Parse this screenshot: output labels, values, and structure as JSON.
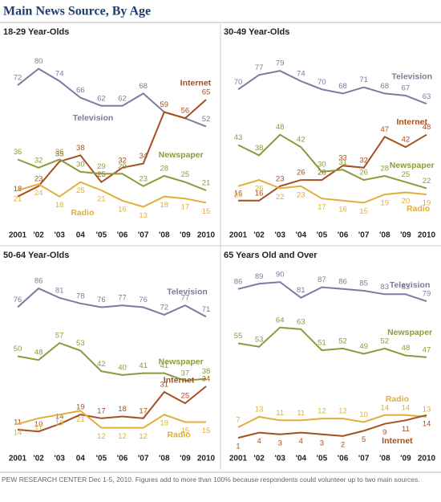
{
  "title": "Main News Source, By Age",
  "note": "PEW RESEARCH CENTER Dec 1-5, 2010. Figures add to more than 100% because respondents could volunteer up to two main sources.",
  "chart_data": [
    {
      "type": "line",
      "title": "18-29 Year-Olds",
      "categories": [
        "2001",
        "'02",
        "'03",
        "04",
        "'05",
        "'06",
        "'07",
        "'08",
        "'09",
        "2010"
      ],
      "ylim": [
        5,
        90
      ],
      "series": [
        {
          "name": "Television",
          "color": "#7c7b9e",
          "values": [
            72,
            80,
            74,
            66,
            62,
            62,
            68,
            59,
            56,
            52
          ],
          "value_labels": [
            "72",
            "80",
            "74",
            "66",
            "62",
            "62",
            "68",
            null,
            null,
            "52"
          ]
        },
        {
          "name": "Internet",
          "color": "#a5501f",
          "values": [
            18,
            23,
            35,
            38,
            25,
            32,
            34,
            59,
            56,
            65
          ]
        },
        {
          "name": "Newspaper",
          "color": "#8c9a3c",
          "values": [
            36,
            32,
            36,
            30,
            29,
            29,
            23,
            28,
            25,
            21
          ]
        },
        {
          "name": "Radio",
          "color": "#e0ae3a",
          "values": [
            21,
            24,
            18,
            25,
            21,
            16,
            13,
            18,
            17,
            15
          ]
        }
      ]
    },
    {
      "type": "line",
      "title": "30-49 Year-Olds",
      "categories": [
        "2001",
        "'02",
        "'03",
        "'04",
        "'05",
        "'06",
        "'07",
        "'08",
        "'09",
        "2010"
      ],
      "ylim": [
        5,
        90
      ],
      "series": [
        {
          "name": "Television",
          "color": "#7c7b9e",
          "values": [
            70,
            77,
            79,
            74,
            70,
            68,
            71,
            68,
            67,
            63
          ]
        },
        {
          "name": "Internet",
          "color": "#a5501f",
          "values": [
            16,
            16,
            23,
            26,
            26,
            33,
            32,
            47,
            42,
            48
          ]
        },
        {
          "name": "Newspaper",
          "color": "#8c9a3c",
          "values": [
            43,
            38,
            48,
            42,
            30,
            31,
            26,
            28,
            25,
            22
          ]
        },
        {
          "name": "Radio",
          "color": "#e0ae3a",
          "values": [
            23,
            26,
            22,
            23,
            17,
            16,
            15,
            19,
            20,
            19
          ]
        }
      ]
    },
    {
      "type": "line",
      "title": "50-64 Year-Olds",
      "categories": [
        "2001",
        "'02",
        "'03",
        "04",
        "'05",
        "'06",
        "'07",
        "'08",
        "'09",
        "2010"
      ],
      "ylim": [
        2,
        95
      ],
      "series": [
        {
          "name": "Television",
          "color": "#7c7b9e",
          "values": [
            76,
            86,
            81,
            78,
            76,
            77,
            76,
            72,
            77,
            71
          ]
        },
        {
          "name": "Newspaper",
          "color": "#8c9a3c",
          "values": [
            50,
            48,
            57,
            53,
            42,
            40,
            41,
            41,
            37,
            38
          ]
        },
        {
          "name": "Internet",
          "color": "#a5501f",
          "values": [
            11,
            10,
            14,
            19,
            17,
            18,
            17,
            31,
            25,
            34
          ]
        },
        {
          "name": "Radio",
          "color": "#e0ae3a",
          "values": [
            14,
            17,
            19,
            21,
            12,
            12,
            12,
            19,
            15,
            15
          ]
        }
      ]
    },
    {
      "type": "line",
      "title": "65 Years Old and Over",
      "categories": [
        "2001",
        "'02",
        "'03",
        "'04",
        "'05",
        "'06",
        "'07",
        "'08",
        "'09",
        "2010"
      ],
      "ylim": [
        -4,
        96
      ],
      "series": [
        {
          "name": "Television",
          "color": "#7c7b9e",
          "values": [
            86,
            89,
            90,
            81,
            87,
            86,
            85,
            83,
            83,
            79
          ]
        },
        {
          "name": "Newspaper",
          "color": "#8c9a3c",
          "values": [
            55,
            53,
            64,
            63,
            51,
            52,
            49,
            52,
            48,
            47
          ]
        },
        {
          "name": "Radio",
          "color": "#e0ae3a",
          "values": [
            7,
            13,
            11,
            11,
            12,
            12,
            10,
            14,
            14,
            13
          ]
        },
        {
          "name": "Internet",
          "color": "#a5501f",
          "values": [
            1,
            4,
            3,
            4,
            3,
            2,
            5,
            9,
            11,
            14
          ]
        }
      ]
    }
  ]
}
